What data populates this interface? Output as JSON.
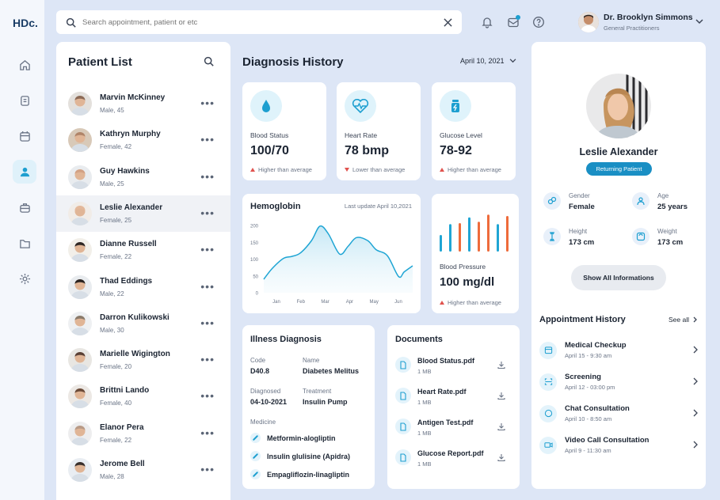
{
  "app": {
    "logo": "HDc."
  },
  "search": {
    "placeholder": "Search appointment, patient or etc"
  },
  "user": {
    "name": "Dr. Brooklyn Simmons",
    "role": "General Practitioners"
  },
  "patient_list": {
    "title": "Patient List",
    "patients": [
      {
        "name": "Marvin McKinney",
        "info": "Male, 45"
      },
      {
        "name": "Kathryn Murphy",
        "info": "Female, 42"
      },
      {
        "name": "Guy Hawkins",
        "info": "Male, 25"
      },
      {
        "name": "Leslie Alexander",
        "info": "Female, 25"
      },
      {
        "name": "Dianne Russell",
        "info": "Female, 22"
      },
      {
        "name": "Thad Eddings",
        "info": "Male, 22"
      },
      {
        "name": "Darron Kulikowski",
        "info": "Male, 30"
      },
      {
        "name": "Marielle Wigington",
        "info": "Female, 20"
      },
      {
        "name": "Brittni Lando",
        "info": "Female, 40"
      },
      {
        "name": "Elanor Pera",
        "info": "Female, 22"
      },
      {
        "name": "Jerome Bell",
        "info": "Male, 28"
      }
    ]
  },
  "diagnosis": {
    "title": "Diagnosis History",
    "date": "April 10, 2021",
    "vitals": [
      {
        "label": "Blood Status",
        "value": "100/70",
        "note": "Higher than average"
      },
      {
        "label": "Heart Rate",
        "value": "78 bmp",
        "note": "Lower than average"
      },
      {
        "label": "Glucose Level",
        "value": "78-92",
        "note": "Higher than average"
      }
    ],
    "blood_pressure": {
      "label": "Blood Pressure",
      "value": "100 mg/dl",
      "note": "Higher than average"
    }
  },
  "chart_data": {
    "type": "area",
    "title": "Hemoglobin",
    "subtitle": "Last update April 10,2021",
    "categories": [
      "Jan",
      "Feb",
      "Mar",
      "Apr",
      "May",
      "Jun"
    ],
    "y_ticks": [
      "200",
      "150",
      "100",
      "50",
      "0"
    ],
    "ylim": [
      0,
      200
    ],
    "x": [
      0,
      0.3,
      0.7,
      1.0,
      1.3,
      1.7,
      2.0,
      2.3,
      2.7,
      3.0,
      3.3,
      3.7,
      4.0,
      4.4,
      4.8,
      5.0,
      5.3
    ],
    "values": [
      40,
      72,
      102,
      108,
      118,
      155,
      198,
      175,
      115,
      138,
      164,
      155,
      128,
      110,
      48,
      62,
      80
    ],
    "series_color": "#1fa5d4"
  },
  "illness": {
    "title": "Illness Diagnosis",
    "code_label": "Code",
    "code": "D40.8",
    "name_label": "Name",
    "name": "Diabetes Melitus",
    "diagnosed_label": "Diagnosed",
    "diagnosed": "04-10-2021",
    "treatment_label": "Treatment",
    "treatment": "Insulin Pump",
    "medicine_label": "Medicine",
    "medicines": [
      "Metformin-alogliptin",
      "Insulin glulisine (Apidra)",
      "Empagliflozin-linagliptin"
    ]
  },
  "documents": {
    "title": "Documents",
    "files": [
      {
        "name": "Blood Status.pdf",
        "size": "1 MB"
      },
      {
        "name": "Heart Rate.pdf",
        "size": "1 MB"
      },
      {
        "name": "Antigen Test.pdf",
        "size": "1 MB"
      },
      {
        "name": "Glucose Report.pdf",
        "size": "1 MB"
      }
    ]
  },
  "profile": {
    "name": "Leslie Alexander",
    "badge": "Returning Patient",
    "gender_label": "Gender",
    "gender": "Female",
    "age_label": "Age",
    "age": "25 years",
    "height_label": "Height",
    "height": "173 cm",
    "weight_label": "Weight",
    "weight": "173 cm",
    "show_all": "Show All Informations"
  },
  "appointments": {
    "title": "Appointment History",
    "see_all": "See all",
    "items": [
      {
        "name": "Medical Checkup",
        "date": "April 15 - 9:30 am"
      },
      {
        "name": "Screening",
        "date": "April 12 - 03:00 pm"
      },
      {
        "name": "Chat Consultation",
        "date": "April 10 - 8:50 am"
      },
      {
        "name": "Video Call Consultation",
        "date": "April 9 - 11:30 am"
      }
    ]
  },
  "colors": {
    "accent": "#1d9fd0",
    "alert": "#e0524d",
    "bar_orange": "#ee6b3b"
  }
}
